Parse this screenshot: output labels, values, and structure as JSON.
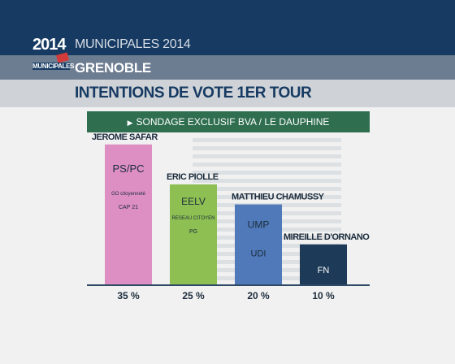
{
  "brand": {
    "logo_year": "2014",
    "logo_sub": "MUNICIPALES",
    "kicker": "MUNICIPALES 2014",
    "city": "GRENOBLE",
    "headline": "INTENTIONS DE VOTE 1ER TOUR",
    "source": "SONDAGE EXCLUSIF BVA / LE DAUPHINE",
    "colors": {
      "header": "#163a62",
      "city_band": "#6d7d91",
      "title_band": "#cfd3d8",
      "source_band": "#2f6e4f"
    }
  },
  "chart_data": {
    "type": "bar",
    "categories": [
      "JEROME SAFAR",
      "ERIC PIOLLE",
      "MATTHIEU CHAMUSSY",
      "MIREILLE D'ORNANO"
    ],
    "values": [
      35,
      25,
      20,
      10
    ],
    "value_labels": [
      "35 %",
      "25 %",
      "20 %",
      "10 %"
    ],
    "colors": [
      "#dd8ec3",
      "#8dbf52",
      "#4f79b8",
      "#1d3a58"
    ],
    "parties": [
      [
        "PS/PC",
        "GO citoyenneté",
        "CAP 21"
      ],
      [
        "EELV",
        "RESEAU CITOYEN",
        "PG"
      ],
      [
        "UMP",
        "UDI"
      ],
      [
        "FN"
      ]
    ],
    "ylim": [
      0,
      38
    ],
    "grid": true
  }
}
